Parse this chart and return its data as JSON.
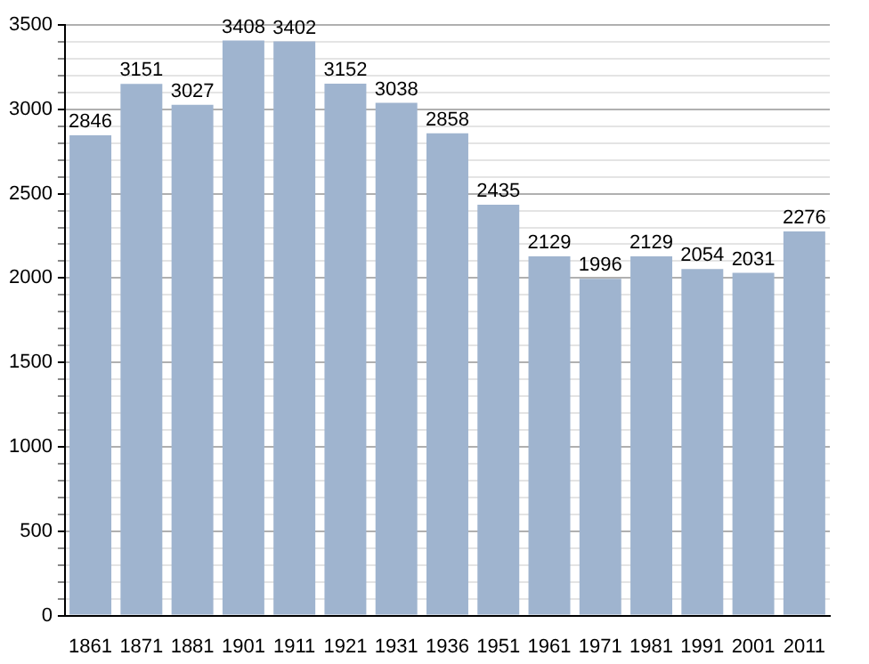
{
  "chart_data": {
    "type": "bar",
    "categories": [
      "1861",
      "1871",
      "1881",
      "1901",
      "1911",
      "1921",
      "1931",
      "1936",
      "1951",
      "1961",
      "1971",
      "1981",
      "1991",
      "2001",
      "2011"
    ],
    "values": [
      2846,
      3151,
      3027,
      3408,
      3402,
      3152,
      3038,
      2858,
      2435,
      2129,
      1996,
      2129,
      2054,
      2031,
      2276
    ],
    "color": "#9fb4cf",
    "ylim": [
      0,
      3500
    ],
    "yticks": [
      0,
      {
        "value": 100,
        "label": null
      },
      {
        "value": 200,
        "label": null
      },
      {
        "value": 300,
        "label": null
      },
      {
        "value": 400,
        "label": null
      },
      500,
      {
        "value": 600,
        "label": null
      },
      {
        "value": 700,
        "label": null
      },
      {
        "value": 800,
        "label": null
      },
      {
        "value": 900,
        "label": null
      },
      1000,
      {
        "value": 1100,
        "label": null
      },
      {
        "value": 1200,
        "label": null
      },
      {
        "value": 1300,
        "label": null
      },
      {
        "value": 1400,
        "label": null
      },
      1500,
      {
        "value": 1600,
        "label": null
      },
      {
        "value": 1700,
        "label": null
      },
      {
        "value": 1800,
        "label": null
      },
      {
        "value": 1900,
        "label": null
      },
      2000,
      {
        "value": 2100,
        "label": null
      },
      {
        "value": 2200,
        "label": null
      },
      {
        "value": 2300,
        "label": null
      },
      {
        "value": 2400,
        "label": null
      },
      2500,
      {
        "value": 2600,
        "label": null
      },
      {
        "value": 2700,
        "label": null
      },
      {
        "value": 2800,
        "label": null
      },
      {
        "value": 2900,
        "label": null
      },
      3000,
      {
        "value": 3100,
        "label": null
      },
      {
        "value": 3200,
        "label": null
      },
      {
        "value": 3300,
        "label": null
      },
      {
        "value": 3400,
        "label": null
      },
      3500
    ],
    "grid": "y",
    "data_labels": true
  }
}
